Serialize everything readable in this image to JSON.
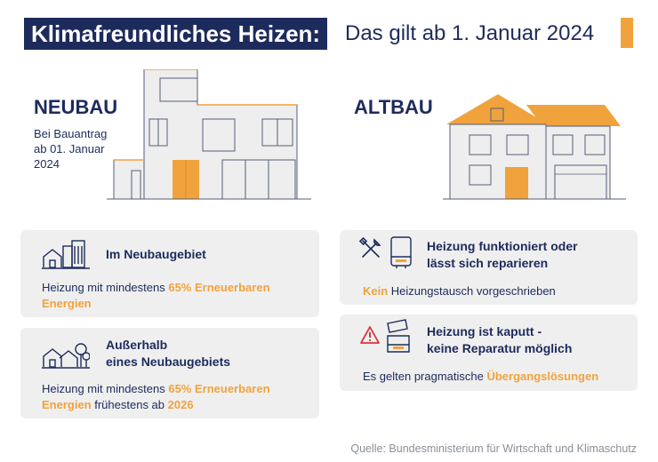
{
  "header": {
    "title": "Klimafreundliches Heizen:",
    "subtitle": "Das gilt ab 1. Januar 2024"
  },
  "neubau": {
    "label": "NEUBAU",
    "note_line1": "Bei Bauantrag",
    "note_line2": "ab 01. Januar",
    "note_line3": "2024"
  },
  "altbau": {
    "label": "ALTBAU"
  },
  "cards": {
    "neubaugebiet": {
      "title": "Im Neubaugebiet",
      "text_a": "Heizung mit mindestens ",
      "text_hl1": "65% Erneuerbaren",
      "text_hl2": "Energien"
    },
    "ausserhalb": {
      "title_line1": "Außerhalb",
      "title_line2": "eines Neubaugebiets",
      "text_a": "Heizung mit mindestens ",
      "text_hl1": "65% Erneuerbaren",
      "text_hl2": "Energien",
      "text_b": " frühestens ab ",
      "text_hl3": "2026"
    },
    "funktioniert": {
      "title_line1": "Heizung funktioniert oder",
      "title_line2": "lässt sich reparieren",
      "text_hl": "Kein",
      "text_b": " Heizungstausch vorgeschrieben"
    },
    "kaputt": {
      "title_line1": "Heizung ist kaputt -",
      "title_line2": "keine Reparatur möglich",
      "text_a": "Es gelten pragmatische ",
      "text_hl": "Übergangslösungen"
    }
  },
  "source": "Quelle: Bundesministerium für Wirtschaft und Klimaschutz",
  "colors": {
    "navy": "#1d2b5c",
    "orange": "#f0a33c",
    "card_bg": "#efefef",
    "house_wall": "#eeeeee",
    "house_line": "#555e7a"
  },
  "icons": {
    "neubaugebiet": "buildings-icon",
    "ausserhalb": "house-trees-icon",
    "funktioniert": "tools-icon",
    "funktioniert_device": "heater-icon",
    "kaputt_warning": "warning-icon",
    "kaputt_device": "broken-heater-icon"
  }
}
